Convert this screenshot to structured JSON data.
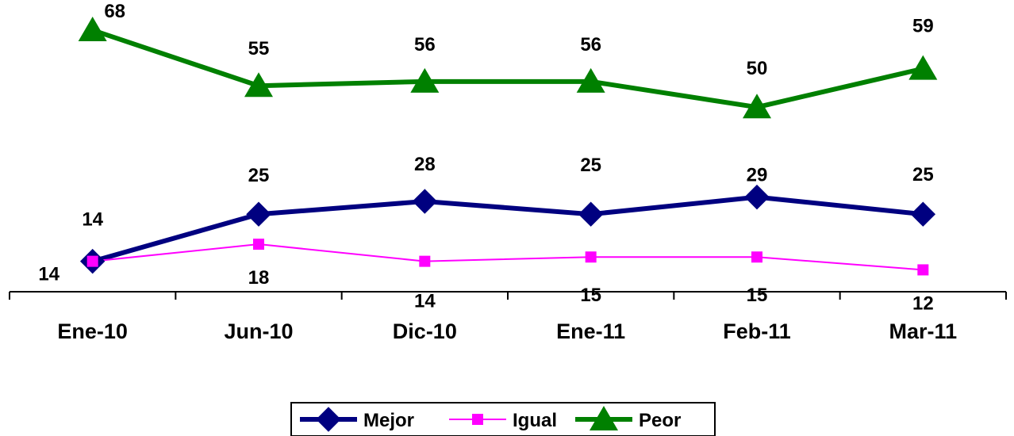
{
  "chart_data": {
    "type": "line",
    "categories": [
      "Ene-10",
      "Jun-10",
      "Dic-10",
      "Ene-11",
      "Feb-11",
      "Mar-11"
    ],
    "series": [
      {
        "name": "Mejor",
        "values": [
          14,
          25,
          28,
          25,
          29,
          25
        ],
        "color": "#000080",
        "marker": "diamond"
      },
      {
        "name": "Igual",
        "values": [
          14,
          18,
          14,
          15,
          15,
          12
        ],
        "color": "#ff00ff",
        "marker": "square"
      },
      {
        "name": "Peor",
        "values": [
          68,
          55,
          56,
          56,
          50,
          59
        ],
        "color": "#008000",
        "marker": "triangle"
      }
    ],
    "title": "",
    "xlabel": "",
    "ylabel": "",
    "grid": false,
    "legend": "bottom"
  }
}
